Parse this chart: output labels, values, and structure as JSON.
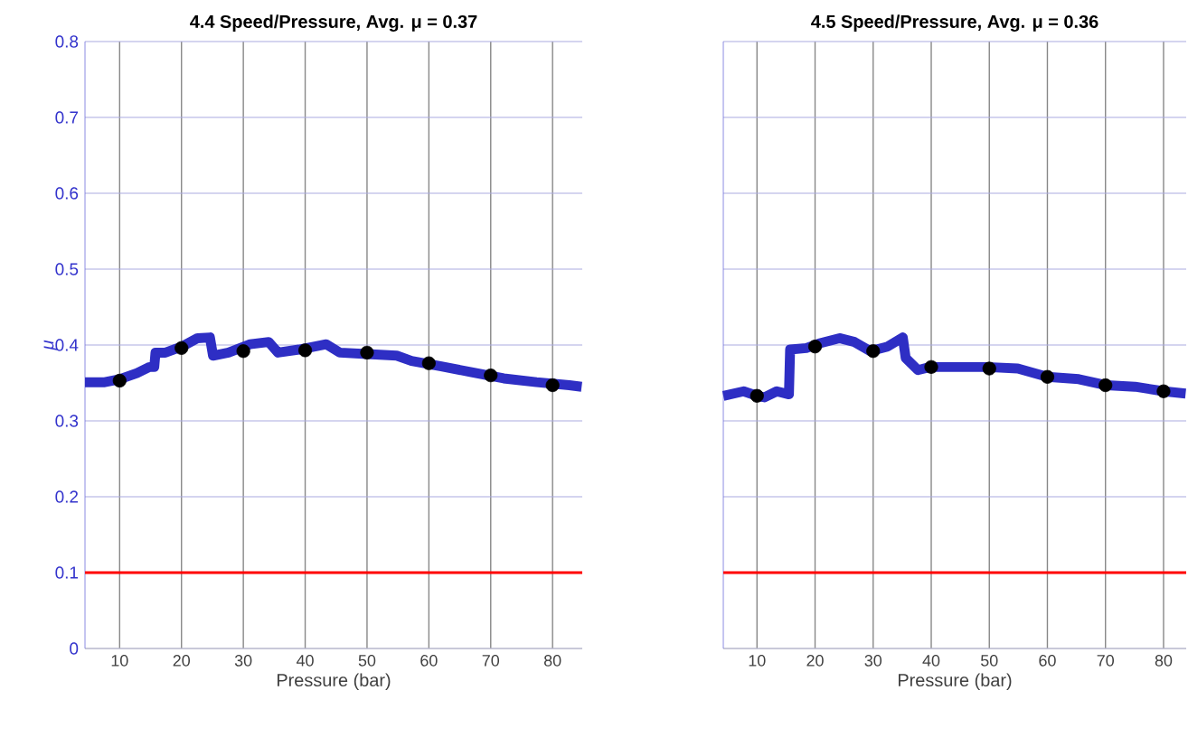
{
  "chart_data": [
    {
      "type": "line",
      "title": "4.4 Speed/Pressure, Avg. μ = 0.37",
      "xlabel": "Pressure (bar)",
      "ylabel": "μ",
      "xlim": [
        4.4,
        84.8
      ],
      "ylim": [
        0,
        0.8
      ],
      "xticks": [
        10,
        20,
        30,
        40,
        50,
        60,
        70,
        80
      ],
      "yticks": [
        0,
        0.1,
        0.2,
        0.3,
        0.4,
        0.5,
        0.6,
        0.7,
        0.8
      ],
      "grid": true,
      "ref_lines": [
        {
          "axis": "y",
          "value": 0.1,
          "color": "#ff0000"
        }
      ],
      "series": [
        {
          "color": "#2e2ec4",
          "marker": "none",
          "x": [
            4.4,
            7.6,
            10,
            12.8,
            14.8,
            15.6,
            15.8,
            17.4,
            20.1,
            22.6,
            24.6,
            25.1,
            27.6,
            31.1,
            34.1,
            35.6,
            39.0,
            43.4,
            45.6,
            50,
            54.8,
            57.2,
            62.0,
            66.9,
            72.1,
            77.4,
            82.7,
            84.7
          ],
          "values": [
            0.351,
            0.351,
            0.355,
            0.363,
            0.371,
            0.371,
            0.39,
            0.39,
            0.398,
            0.409,
            0.41,
            0.386,
            0.39,
            0.401,
            0.404,
            0.39,
            0.394,
            0.401,
            0.39,
            0.388,
            0.386,
            0.379,
            0.372,
            0.364,
            0.356,
            0.351,
            0.347,
            0.345
          ]
        },
        {
          "type": "scatter",
          "color": "#000000",
          "marker": "circle",
          "x": [
            10,
            20,
            30,
            40,
            50,
            60,
            70,
            80
          ],
          "values": [
            0.353,
            0.396,
            0.392,
            0.393,
            0.39,
            0.376,
            0.36,
            0.347
          ]
        }
      ]
    },
    {
      "type": "line",
      "title": "4.5 Speed/Pressure, Avg. μ = 0.36",
      "xlabel": "Pressure (bar)",
      "tick_labels": "x",
      "xlim": [
        4.2,
        83.9
      ],
      "ylim": [
        0,
        0.8
      ],
      "xticks": [
        10,
        20,
        30,
        40,
        50,
        60,
        70,
        80
      ],
      "yticks": [
        0,
        0.1,
        0.2,
        0.3,
        0.4,
        0.5,
        0.6,
        0.7,
        0.8
      ],
      "grid": true,
      "ref_lines": [
        {
          "axis": "y",
          "value": 0.1,
          "color": "#ff0000"
        }
      ],
      "series": [
        {
          "color": "#2e2ec4",
          "marker": "none",
          "x": [
            4.2,
            7.7,
            10,
            11.3,
            13.4,
            15.5,
            15.7,
            18.5,
            20.7,
            24.2,
            26.8,
            29.5,
            32.5,
            35.1,
            35.6,
            37.7,
            39.8,
            44.3,
            49.6,
            54.9,
            60,
            65.4,
            70.2,
            75.1,
            80.1,
            83.8
          ],
          "values": [
            0.333,
            0.339,
            0.333,
            0.331,
            0.339,
            0.335,
            0.394,
            0.396,
            0.402,
            0.409,
            0.404,
            0.392,
            0.398,
            0.41,
            0.383,
            0.367,
            0.371,
            0.371,
            0.371,
            0.369,
            0.358,
            0.355,
            0.347,
            0.345,
            0.339,
            0.336
          ]
        },
        {
          "type": "scatter",
          "color": "#000000",
          "marker": "circle",
          "x": [
            10,
            20,
            30,
            40,
            50,
            60,
            70,
            80
          ],
          "values": [
            0.333,
            0.398,
            0.392,
            0.371,
            0.369,
            0.358,
            0.347,
            0.339
          ]
        }
      ]
    }
  ]
}
